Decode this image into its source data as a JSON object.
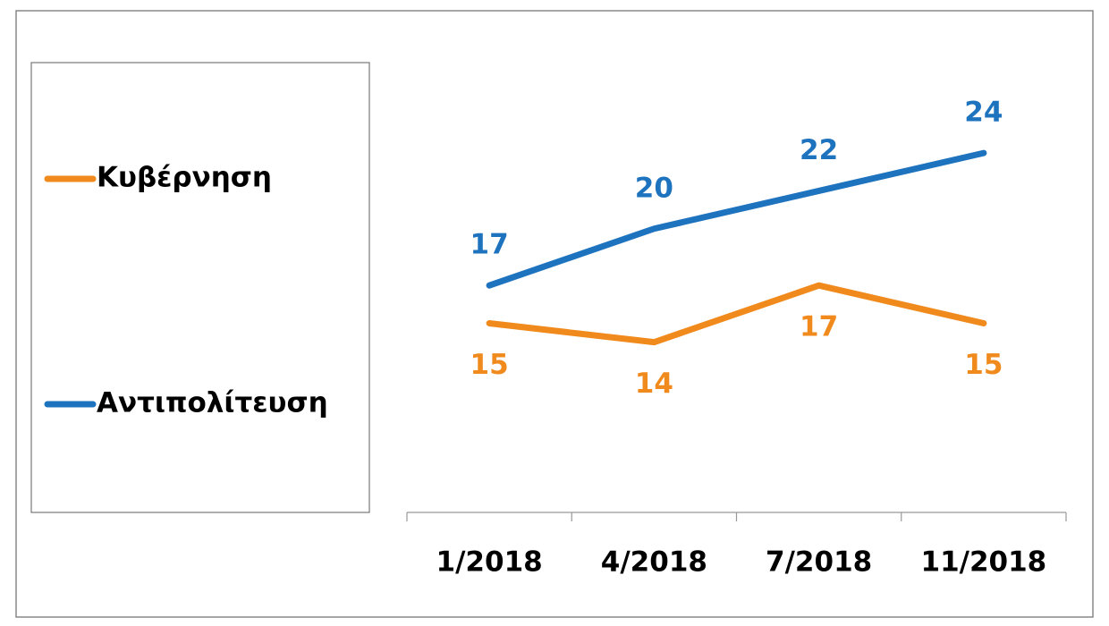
{
  "chart_data": {
    "type": "line",
    "categories": [
      "1/2018",
      "4/2018",
      "7/2018",
      "11/2018"
    ],
    "series": [
      {
        "name": "Κυβέρνηση",
        "color": "#F08A1C",
        "values": [
          15,
          14,
          17,
          15
        ]
      },
      {
        "name": "Αντιπολίτευση",
        "color": "#1E73BE",
        "values": [
          17,
          20,
          22,
          24
        ]
      }
    ],
    "ylim": [
      5,
      25
    ],
    "legend": "left"
  }
}
